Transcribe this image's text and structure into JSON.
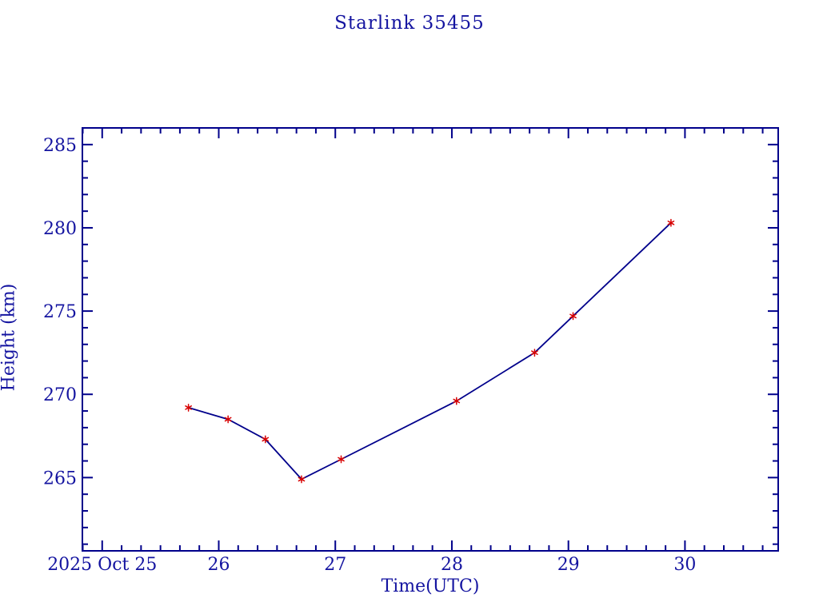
{
  "page_background": "#ffffff",
  "chart_data": {
    "type": "line",
    "title": "Starlink 35455",
    "xlabel": "Time(UTC)",
    "ylabel": "Height (km)",
    "x_unit": "day of month (2025 Oct, UTC)",
    "grid": false,
    "legend": null,
    "x_axis": {
      "lim": [
        24.83,
        30.8
      ],
      "major_ticks": [
        25,
        26,
        27,
        28,
        29,
        30
      ],
      "major_labels": [
        "2025 Oct 25",
        "26",
        "27",
        "28",
        "29",
        "30"
      ],
      "minor_interval": 0.1666667
    },
    "y_axis": {
      "lim": [
        260.6,
        286.0
      ],
      "major_ticks": [
        265,
        270,
        275,
        280,
        285
      ],
      "major_labels": [
        "265",
        "270",
        "275",
        "280",
        "285"
      ],
      "minor_interval": 1
    },
    "series": [
      {
        "name": "height",
        "marker": "asterisk",
        "points": [
          [
            25.74,
            269.2
          ],
          [
            26.08,
            268.5
          ],
          [
            26.4,
            267.3
          ],
          [
            26.71,
            264.9
          ],
          [
            27.05,
            266.1
          ],
          [
            28.04,
            269.6
          ],
          [
            28.71,
            272.5
          ],
          [
            29.04,
            274.7
          ],
          [
            29.88,
            280.3
          ]
        ]
      }
    ],
    "colors": {
      "frame": "#00008b",
      "line": "#00008b",
      "marker": "#d80000",
      "text": "#1414a0"
    }
  }
}
